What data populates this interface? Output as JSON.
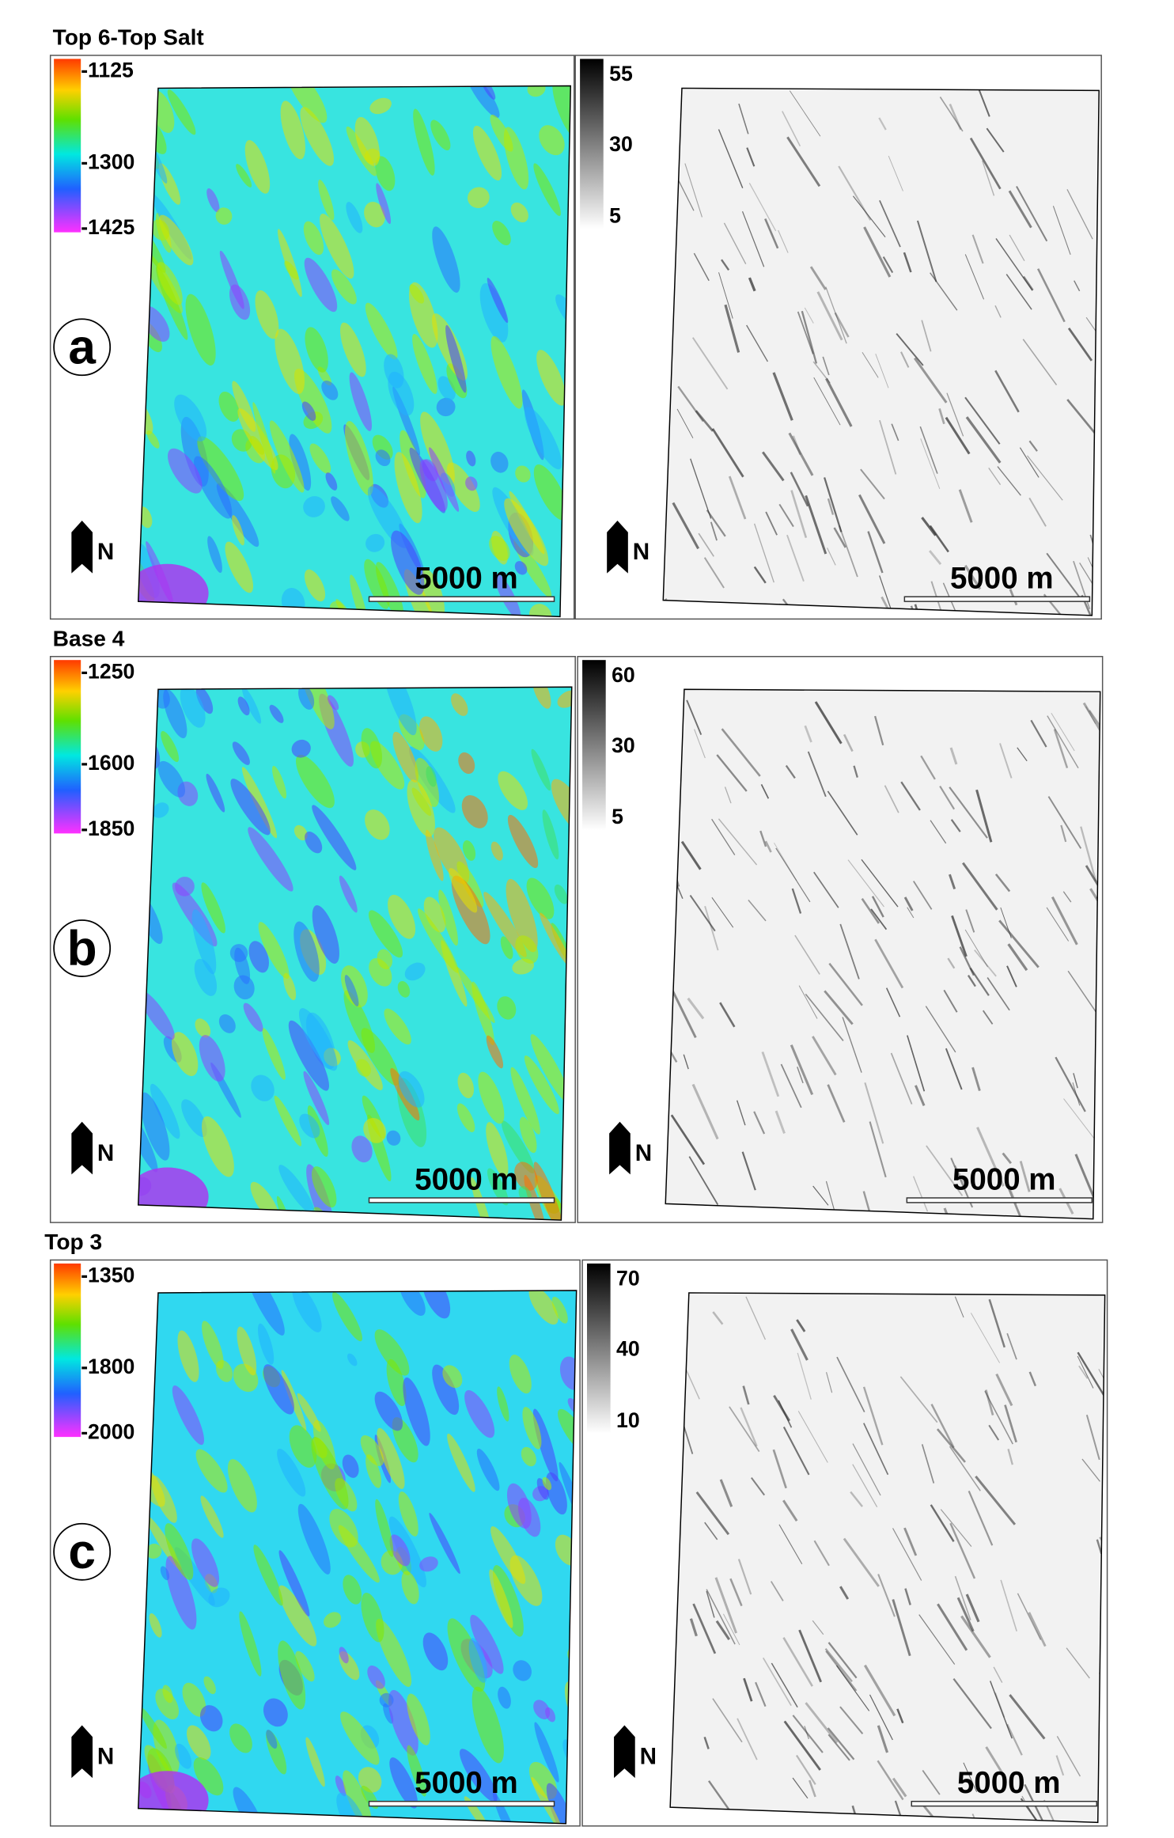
{
  "panels": [
    {
      "title": "Top 6-Top Salt",
      "letter": "a",
      "depth_scale": [
        "-1125",
        "-1300",
        "-1425"
      ],
      "dip_scale": [
        "55",
        "30",
        "5"
      ],
      "north": "N",
      "scale_bar": "5000 m",
      "scale_bar_right": "5000 m",
      "north_right": "N"
    },
    {
      "title": "Base 4",
      "letter": "b",
      "depth_scale": [
        "-1250",
        "-1600",
        "-1850"
      ],
      "dip_scale": [
        "60",
        "30",
        "5"
      ],
      "north": "N",
      "scale_bar": "5000 m",
      "scale_bar_right": "5000 m",
      "north_right": "N"
    },
    {
      "title": "Top 3",
      "letter": "c",
      "depth_scale": [
        "-1350",
        "-1800",
        "-2000"
      ],
      "dip_scale": [
        "70",
        "40",
        "10"
      ],
      "north": "N",
      "scale_bar": "5000 m",
      "scale_bar_right": "5000 m",
      "north_right": "N"
    }
  ]
}
